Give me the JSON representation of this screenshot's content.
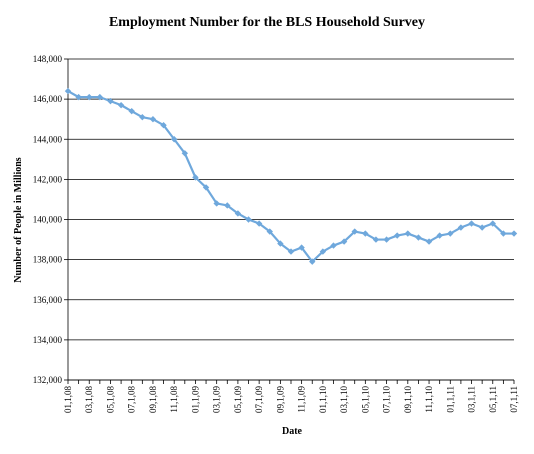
{
  "chart_data": {
    "type": "line",
    "title": "Employment Number for the BLS Household Survey",
    "xlabel": "Date",
    "ylabel": "Number of People in Millions",
    "ylim": [
      132,
      148
    ],
    "yticks": [
      "132,000",
      "134,000",
      "136,000",
      "138,000",
      "140,000",
      "142,000",
      "144,000",
      "146,000",
      "148,000"
    ],
    "ytick_values": [
      132,
      134,
      136,
      138,
      140,
      142,
      144,
      146,
      148
    ],
    "grid": "horizontal",
    "line_color": "#6fa8dc",
    "marker_color": "#6fa8dc",
    "x": [
      "01,1,08",
      "02,1,08",
      "03,1,08",
      "04,1,08",
      "05,1,08",
      "06,1,08",
      "07,1,08",
      "08,1,08",
      "09,1,08",
      "10,1,08",
      "11,1,08",
      "12,1,08",
      "01,1,09",
      "02,1,09",
      "03,1,09",
      "04,1,09",
      "05,1,09",
      "06,1,09",
      "07,1,09",
      "08,1,09",
      "09,1,09",
      "10,1,09",
      "11,1,09",
      "12,1,09",
      "01,1,10",
      "02,1,10",
      "03,1,10",
      "04,1,10",
      "05,1,10",
      "06,1,10",
      "07,1,10",
      "08,1,10",
      "09,1,10",
      "10,1,10",
      "11,1,10",
      "12,1,10",
      "01,1,11",
      "02,1,11",
      "03,1,11",
      "04,1,11",
      "05,1,11",
      "06,1,11",
      "07,1,11"
    ],
    "xtick_labels": [
      "01,1,08",
      "03,1,08",
      "05,1,08",
      "07,1,08",
      "09,1,08",
      "11,1,08",
      "01,1,09",
      "03,1,09",
      "05,1,09",
      "07,1,09",
      "09,1,09",
      "11,1,09",
      "01,1,10",
      "03,1,10",
      "05,1,10",
      "07,1,10",
      "09,1,10",
      "11,1,10",
      "01,1,11",
      "03,1,11",
      "05,1,11",
      "07,1,11"
    ],
    "series": [
      {
        "values": [
          146.4,
          146.1,
          146.1,
          146.1,
          145.9,
          145.7,
          145.4,
          145.1,
          145.0,
          144.7,
          144.0,
          143.3,
          142.1,
          141.6,
          140.8,
          140.7,
          140.3,
          140.0,
          139.8,
          139.4,
          138.8,
          138.4,
          138.6,
          137.9,
          138.4,
          138.7,
          138.9,
          139.4,
          139.3,
          139.0,
          139.0,
          139.2,
          139.3,
          139.1,
          138.9,
          139.2,
          139.3,
          139.6,
          139.8,
          139.6,
          139.8,
          139.3,
          139.3
        ]
      }
    ]
  }
}
